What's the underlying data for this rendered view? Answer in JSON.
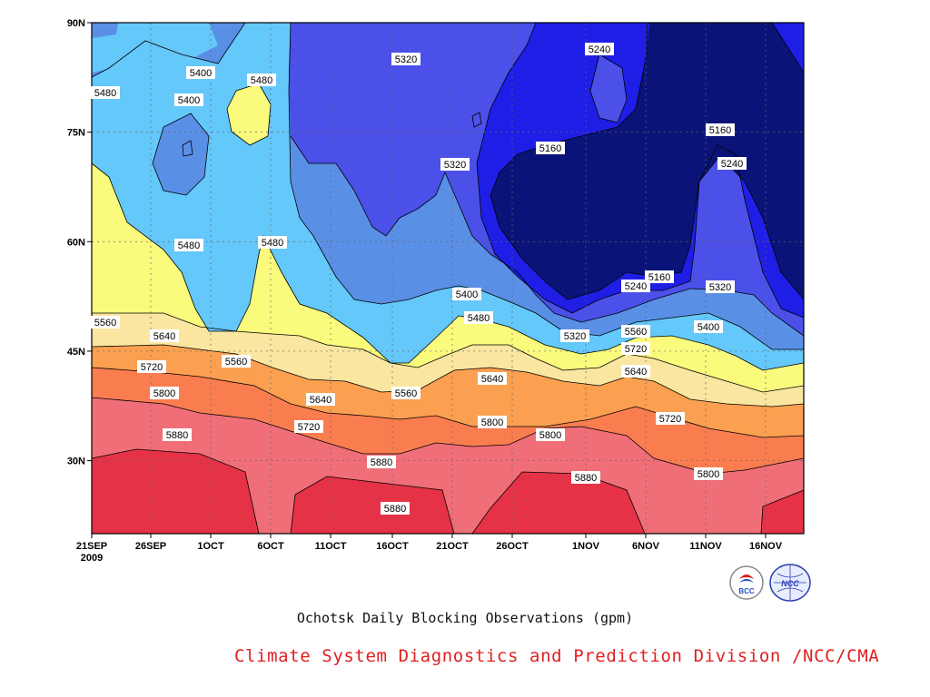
{
  "chart_data": {
    "type": "heatmap",
    "subtype": "filled-contour (time-latitude Hovmoller)",
    "title": "Ochotsk Daily Blocking Observations (gpm)",
    "credit": "Climate System Diagnostics and Prediction Division /NCC/CMA",
    "xlabel": "",
    "ylabel": "",
    "x_ticks": [
      "21SEP\n2009",
      "26SEP",
      "1OCT",
      "6OCT",
      "11OCT",
      "16OCT",
      "21OCT",
      "26OCT",
      "1NOV",
      "6NOV",
      "11NOV",
      "16NOV"
    ],
    "y_ticks": [
      "30N",
      "45N",
      "60N",
      "75N",
      "90N"
    ],
    "xlim": [
      "2009-09-21",
      "2009-11-19"
    ],
    "ylim": [
      20,
      90
    ],
    "grid": true,
    "levels": [
      5160,
      5240,
      5320,
      5400,
      5480,
      5560,
      5640,
      5720,
      5800,
      5880
    ],
    "colors": {
      "below_5160": "#0a1478",
      "5160_5240": "#1e1ee6",
      "5240_5320": "#4b50e8",
      "5320_5400": "#5a8fe6",
      "5400_5480": "#64c8fa",
      "5480_5560": "#fafa7d",
      "5560_5640": "#fae6a0",
      "5640_5720": "#faa050",
      "5720_5800": "#fa7d50",
      "5800_5880": "#f06e78",
      "above_5880": "#e63246"
    },
    "contour_labels": [
      "5240",
      "5400",
      "5320",
      "5480",
      "5400",
      "5480",
      "5160",
      "5160",
      "5320",
      "5240",
      "5480",
      "5480",
      "5400",
      "5160",
      "5240",
      "5320",
      "5480",
      "5560",
      "5320",
      "5400",
      "5640",
      "5560",
      "5560",
      "5720",
      "5640",
      "5640",
      "5640",
      "5800",
      "5560",
      "5720",
      "5720",
      "5880",
      "5720",
      "5800",
      "5800",
      "5880",
      "5800",
      "5880"
    ]
  },
  "logos": {
    "bcc": "BCC",
    "ncc": "NCC"
  }
}
